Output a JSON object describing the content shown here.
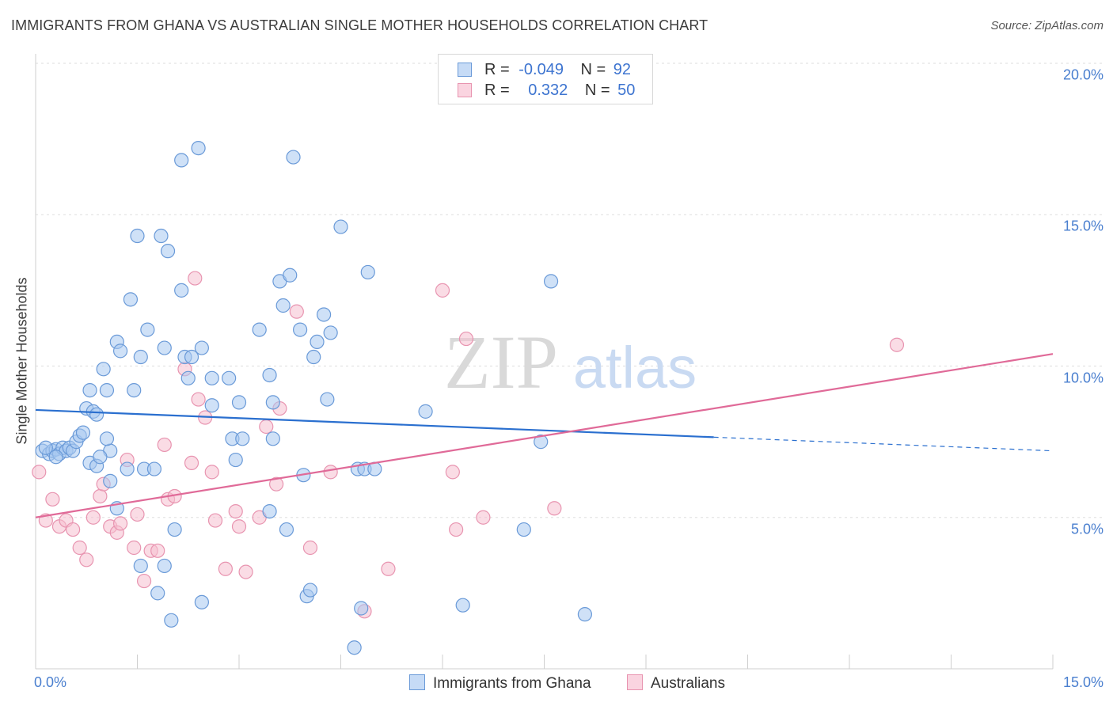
{
  "title": "IMMIGRANTS FROM GHANA VS AUSTRALIAN SINGLE MOTHER HOUSEHOLDS CORRELATION CHART",
  "source": "Source: ZipAtlas.com",
  "watermark": {
    "zip": "ZIP",
    "atlas": "atlas"
  },
  "legend_top": [
    {
      "r_label": "R =",
      "r_value": "-0.049",
      "n_label": "N =",
      "n_value": "92"
    },
    {
      "r_label": "R =",
      "r_value": "0.332",
      "n_label": "N =",
      "n_value": "50"
    }
  ],
  "legend_bottom": [
    "Immigrants from Ghana",
    "Australians"
  ],
  "colors": {
    "blue_fill": "#a8c8f0",
    "blue_stroke": "#6a9ad8",
    "blue_line": "#2a6fcf",
    "pink_fill": "#f6bfd0",
    "pink_stroke": "#e894b0",
    "pink_line": "#e06a98",
    "tick_label": "#4a7fcf",
    "grid": "#dddddd"
  },
  "chart_data": {
    "type": "scatter",
    "title": "IMMIGRANTS FROM GHANA VS AUSTRALIAN SINGLE MOTHER HOUSEHOLDS CORRELATION CHART",
    "xlabel": "",
    "ylabel": "Single Mother Households",
    "xlim": [
      0,
      15
    ],
    "ylim": [
      0,
      20
    ],
    "x_tick_labels": [
      "0.0%",
      "15.0%"
    ],
    "y_ticks": [
      5,
      10,
      15,
      20
    ],
    "y_tick_labels": [
      "5.0%",
      "10.0%",
      "15.0%",
      "20.0%"
    ],
    "grid": true,
    "legend_position": "top-center",
    "series": [
      {
        "name": "Immigrants from Ghana",
        "color": "#a8c8f0",
        "R": -0.049,
        "N": 92,
        "trend": {
          "x": [
            0.0,
            10.0
          ],
          "y": [
            8.55,
            7.65
          ],
          "dashed_to_x": 15.0,
          "dashed_to_y": 7.2
        },
        "points": [
          [
            0.1,
            7.2
          ],
          [
            0.2,
            7.1
          ],
          [
            0.25,
            7.2
          ],
          [
            0.3,
            7.25
          ],
          [
            0.35,
            7.1
          ],
          [
            0.4,
            7.3
          ],
          [
            0.45,
            7.2
          ],
          [
            0.5,
            7.3
          ],
          [
            0.55,
            7.2
          ],
          [
            0.6,
            7.5
          ],
          [
            0.65,
            7.7
          ],
          [
            0.7,
            7.8
          ],
          [
            0.75,
            8.6
          ],
          [
            0.85,
            8.5
          ],
          [
            0.9,
            8.4
          ],
          [
            0.8,
            9.2
          ],
          [
            1.0,
            9.9
          ],
          [
            1.05,
            9.2
          ],
          [
            1.2,
            10.8
          ],
          [
            1.25,
            10.5
          ],
          [
            1.4,
            12.2
          ],
          [
            1.45,
            9.2
          ],
          [
            1.55,
            10.3
          ],
          [
            1.65,
            11.2
          ],
          [
            1.5,
            14.3
          ],
          [
            1.85,
            14.3
          ],
          [
            1.95,
            13.8
          ],
          [
            1.9,
            10.6
          ],
          [
            2.15,
            12.5
          ],
          [
            2.2,
            10.3
          ],
          [
            2.25,
            9.6
          ],
          [
            2.3,
            10.3
          ],
          [
            2.45,
            10.6
          ],
          [
            2.6,
            9.6
          ],
          [
            2.6,
            8.7
          ],
          [
            2.15,
            16.8
          ],
          [
            2.4,
            17.2
          ],
          [
            2.85,
            9.6
          ],
          [
            2.9,
            7.6
          ],
          [
            2.95,
            6.9
          ],
          [
            3.0,
            8.8
          ],
          [
            3.05,
            7.6
          ],
          [
            3.3,
            11.2
          ],
          [
            3.45,
            9.7
          ],
          [
            3.5,
            8.8
          ],
          [
            3.45,
            5.2
          ],
          [
            3.5,
            7.6
          ],
          [
            3.6,
            12.8
          ],
          [
            3.65,
            12.0
          ],
          [
            3.75,
            13.0
          ],
          [
            3.8,
            16.9
          ],
          [
            3.9,
            11.2
          ],
          [
            3.95,
            6.4
          ],
          [
            4.1,
            10.3
          ],
          [
            4.15,
            10.8
          ],
          [
            4.25,
            11.7
          ],
          [
            4.35,
            11.1
          ],
          [
            4.3,
            8.9
          ],
          [
            4.5,
            14.6
          ],
          [
            4.75,
            6.6
          ],
          [
            4.85,
            6.6
          ],
          [
            4.9,
            13.1
          ],
          [
            5.0,
            6.6
          ],
          [
            5.75,
            8.5
          ],
          [
            7.45,
            7.5
          ],
          [
            7.6,
            12.8
          ],
          [
            6.3,
            2.1
          ],
          [
            7.2,
            4.6
          ],
          [
            8.1,
            1.8
          ],
          [
            0.8,
            6.8
          ],
          [
            0.9,
            6.7
          ],
          [
            1.1,
            7.2
          ],
          [
            1.1,
            6.2
          ],
          [
            1.2,
            5.3
          ],
          [
            1.35,
            6.6
          ],
          [
            1.6,
            6.6
          ],
          [
            1.75,
            6.6
          ],
          [
            1.55,
            3.4
          ],
          [
            1.8,
            2.5
          ],
          [
            1.9,
            3.4
          ],
          [
            2.0,
            1.6
          ],
          [
            2.05,
            4.6
          ],
          [
            2.45,
            2.2
          ],
          [
            3.7,
            4.6
          ],
          [
            4.0,
            2.4
          ],
          [
            4.05,
            2.6
          ],
          [
            4.8,
            2.0
          ],
          [
            4.7,
            0.7
          ],
          [
            1.05,
            7.6
          ],
          [
            0.95,
            7.0
          ],
          [
            0.3,
            7.0
          ],
          [
            0.15,
            7.3
          ]
        ]
      },
      {
        "name": "Australians",
        "color": "#f6bfd0",
        "R": 0.332,
        "N": 50,
        "trend": {
          "x": [
            0.0,
            15.0
          ],
          "y": [
            5.0,
            10.4
          ]
        },
        "points": [
          [
            0.05,
            6.5
          ],
          [
            0.15,
            4.9
          ],
          [
            0.25,
            5.6
          ],
          [
            0.35,
            4.7
          ],
          [
            0.45,
            4.9
          ],
          [
            0.55,
            4.6
          ],
          [
            0.65,
            4.0
          ],
          [
            0.75,
            3.6
          ],
          [
            0.85,
            5.0
          ],
          [
            0.95,
            5.7
          ],
          [
            1.0,
            6.1
          ],
          [
            1.1,
            4.7
          ],
          [
            1.2,
            4.5
          ],
          [
            1.25,
            4.8
          ],
          [
            1.35,
            6.9
          ],
          [
            1.45,
            4.0
          ],
          [
            1.5,
            5.1
          ],
          [
            1.6,
            2.9
          ],
          [
            1.7,
            3.9
          ],
          [
            1.8,
            3.9
          ],
          [
            1.9,
            7.4
          ],
          [
            1.95,
            5.6
          ],
          [
            2.05,
            5.7
          ],
          [
            2.2,
            9.9
          ],
          [
            2.3,
            6.8
          ],
          [
            2.4,
            8.9
          ],
          [
            2.5,
            8.3
          ],
          [
            2.6,
            6.5
          ],
          [
            2.65,
            4.9
          ],
          [
            2.8,
            3.3
          ],
          [
            2.95,
            5.2
          ],
          [
            3.0,
            4.7
          ],
          [
            3.1,
            3.2
          ],
          [
            3.3,
            5.0
          ],
          [
            3.4,
            8.0
          ],
          [
            3.55,
            6.1
          ],
          [
            3.6,
            8.6
          ],
          [
            3.85,
            11.8
          ],
          [
            4.05,
            4.0
          ],
          [
            4.35,
            6.5
          ],
          [
            4.85,
            1.9
          ],
          [
            5.2,
            3.3
          ],
          [
            6.0,
            12.5
          ],
          [
            6.15,
            6.5
          ],
          [
            6.2,
            4.6
          ],
          [
            6.35,
            10.9
          ],
          [
            6.6,
            5.0
          ],
          [
            7.65,
            5.3
          ],
          [
            2.35,
            12.9
          ],
          [
            12.7,
            10.7
          ]
        ]
      }
    ]
  }
}
